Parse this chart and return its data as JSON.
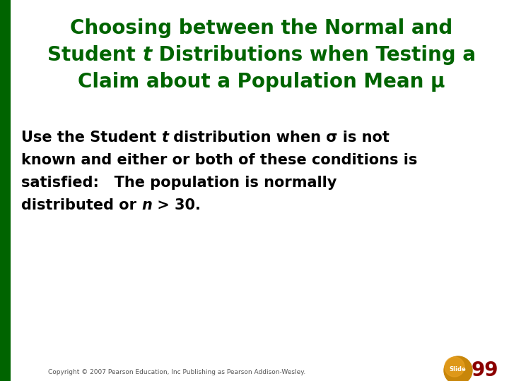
{
  "title_line1": "Choosing between the Normal and",
  "title_line2_pre": "Student ",
  "title_line2_t": "t",
  "title_line2_post": " Distributions when Testing a",
  "title_line3": "Claim about a Population Mean μ",
  "title_color": "#006400",
  "body_line1_pre": "Use the Student ",
  "body_line1_t": "t",
  "body_line1_post": " distribution when σ is not",
  "body_line2": "known and either or both of these conditions is",
  "body_line3": "satisfied:   The population is normally",
  "body_line4_pre": "distributed or ",
  "body_line4_n": "n",
  "body_line4_post": " > 30.",
  "body_color": "#000000",
  "background_color": "#ffffff",
  "left_bar_color": "#006400",
  "copyright_text": "Copyright © 2007 Pearson Education, Inc Publishing as Pearson Addison-Wesley.",
  "slide_number": "99",
  "slide_text": "Slide",
  "slide_color": "#8b0000",
  "title_fontsize": 20,
  "body_fontsize": 15
}
